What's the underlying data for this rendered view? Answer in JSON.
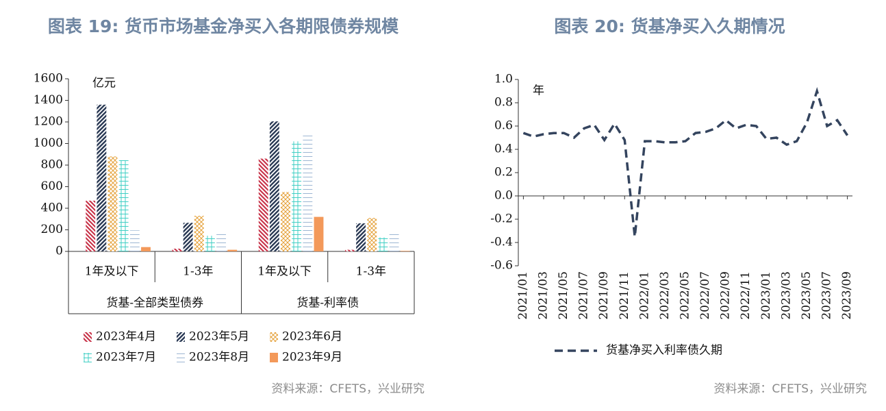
{
  "chart_data": [
    {
      "type": "bar",
      "title": "图表 19: 货币市场基金净买入各期限债券规模",
      "y_label": "亿元",
      "source": "资料来源：CFETS，兴业研究",
      "categories": [
        "1年及以下",
        "1-3年",
        "1年及以下",
        "1-3年"
      ],
      "groups": [
        "货基-全部类型债券",
        "货基-利率债"
      ],
      "ylim": [
        0,
        1600
      ],
      "yticks": [
        0,
        200,
        400,
        600,
        800,
        1000,
        1200,
        1400,
        1600
      ],
      "series": [
        {
          "name": "2023年4月",
          "color": "#c8344a",
          "pattern": "backslash",
          "values": [
            470,
            25,
            860,
            15
          ]
        },
        {
          "name": "2023年5月",
          "color": "#2b3a55",
          "pattern": "slash",
          "values": [
            1360,
            265,
            1205,
            260
          ]
        },
        {
          "name": "2023年6月",
          "color": "#e5a23a",
          "pattern": "cross",
          "values": [
            880,
            330,
            550,
            310
          ]
        },
        {
          "name": "2023年7月",
          "color": "#40cfc4",
          "pattern": "grid",
          "values": [
            845,
            145,
            1020,
            130
          ]
        },
        {
          "name": "2023年8月",
          "color": "#9db6d3",
          "pattern": "horizontal",
          "values": [
            195,
            175,
            1100,
            170
          ]
        },
        {
          "name": "2023年9月",
          "color": "#f3995a",
          "pattern": "solid",
          "values": [
            40,
            15,
            320,
            5
          ]
        }
      ]
    },
    {
      "type": "line",
      "title": "图表 20: 货基净买入久期情况",
      "y_label": "年",
      "source": "资料来源：CFETS，兴业研究",
      "categories": [
        "2021/01",
        null,
        "2021/03",
        null,
        "2021/05",
        null,
        "2021/07",
        null,
        "2021/09",
        null,
        "2021/11",
        null,
        "2022/01",
        null,
        "2022/03",
        null,
        "2022/05",
        null,
        "2022/07",
        null,
        "2022/09",
        null,
        "2022/11",
        null,
        "2023/01",
        null,
        "2023/03",
        null,
        "2023/05",
        null,
        "2023/07",
        null,
        "2023/09"
      ],
      "ylim": [
        -0.6,
        1.0
      ],
      "yticks": [
        {
          "value": 1.0,
          "label": "1.0"
        },
        0.8,
        0.6,
        0.4,
        0.2,
        {
          "value": 0,
          "label": "0.0"
        },
        -0.2,
        -0.4,
        -0.6
      ],
      "series": [
        {
          "name": "货基净买入利率债久期",
          "color": "#34445e",
          "values": [
            0.54,
            0.51,
            0.53,
            0.54,
            0.54,
            0.5,
            0.58,
            0.61,
            0.48,
            0.62,
            0.48,
            -0.35,
            0.47,
            0.47,
            0.46,
            0.46,
            0.47,
            0.54,
            0.55,
            0.58,
            0.65,
            0.58,
            0.61,
            0.6,
            0.49,
            0.5,
            0.44,
            0.47,
            0.63,
            0.9,
            0.6,
            0.65,
            0.52
          ]
        }
      ]
    }
  ]
}
